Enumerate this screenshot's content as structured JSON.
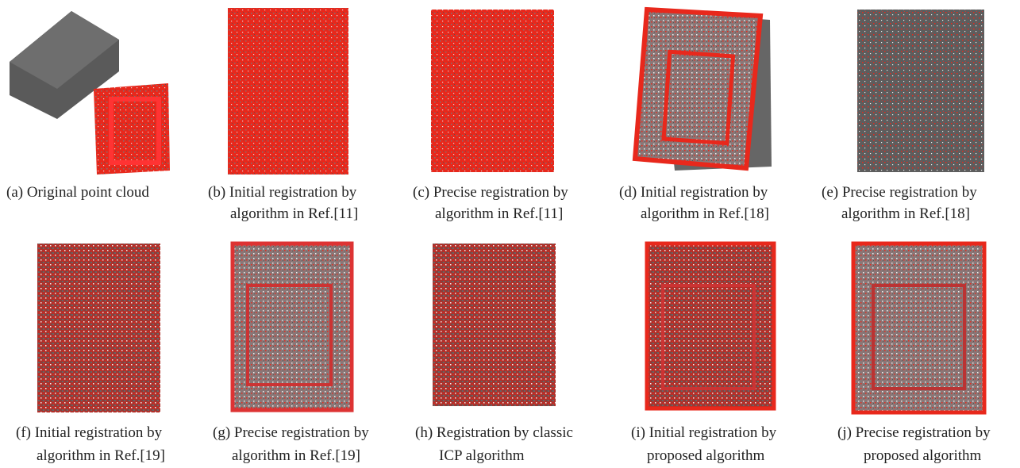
{
  "panels": [
    {
      "caption": [
        "(a) Original point cloud"
      ]
    },
    {
      "caption": [
        "(b) Initial registration by",
        "algorithm in Ref.[11]"
      ]
    },
    {
      "caption": [
        "(c) Precise registration by",
        "algorithm in Ref.[11]"
      ]
    },
    {
      "caption": [
        "(d) Initial registration by",
        "algorithm in Ref.[18]"
      ]
    },
    {
      "caption": [
        "(e) Precise registration by",
        "algorithm in Ref.[18]"
      ]
    },
    {
      "caption": [
        "(f) Initial registration by",
        "algorithm in Ref.[19]"
      ]
    },
    {
      "caption": [
        "(g) Precise registration by",
        "algorithm in Ref.[19]"
      ]
    },
    {
      "caption": [
        "(h) Registration by classic",
        "ICP algorithm"
      ]
    },
    {
      "caption": [
        "(i) Initial registration by",
        "proposed algorithm"
      ]
    },
    {
      "caption": [
        "(j) Precise registration by",
        "proposed algorithm"
      ]
    }
  ]
}
